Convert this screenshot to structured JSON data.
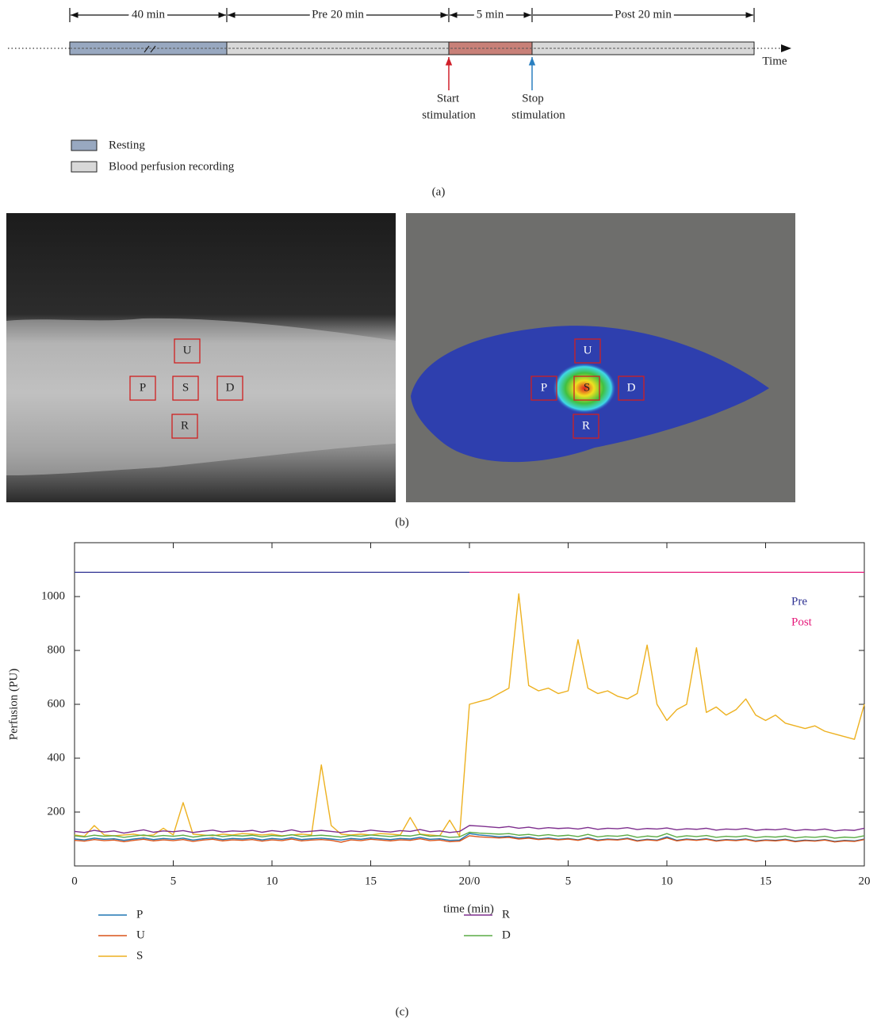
{
  "timeline": {
    "durations": [
      {
        "label": "40 min"
      },
      {
        "label": "Pre 20 min"
      },
      {
        "label": "5 min"
      },
      {
        "label": "Post 20 min"
      }
    ],
    "axis_label": "Time",
    "markers": [
      {
        "lines": [
          "Start",
          "stimulation"
        ]
      },
      {
        "lines": [
          "Stop",
          "stimulation"
        ]
      }
    ],
    "legend": [
      {
        "label": "Resting"
      },
      {
        "label": "Blood perfusion recording"
      }
    ],
    "caption": "(a)"
  },
  "images": {
    "left_rois": [
      "U",
      "P",
      "S",
      "D",
      "R"
    ],
    "right_rois": [
      "U",
      "P",
      "S",
      "D",
      "R"
    ],
    "caption": "(b)"
  },
  "chart_data": {
    "type": "line",
    "x_label": "time (min)",
    "y_label": "Perfusion (PU)",
    "caption": "(c)",
    "xlim": [
      0,
      40
    ],
    "xticks": [
      0,
      5,
      10,
      15,
      {
        "value": 20,
        "label": "20/0"
      },
      {
        "value": 25,
        "label": "5"
      },
      {
        "value": 30,
        "label": "10"
      },
      {
        "value": 35,
        "label": "15"
      },
      {
        "value": 40,
        "label": "20"
      }
    ],
    "ylim": [
      0,
      1200
    ],
    "yticks": [
      200,
      400,
      600,
      800,
      1000
    ],
    "periods": [
      {
        "name": "Pre",
        "color": "#2e3192",
        "start": 0,
        "end": 20,
        "level": 1090
      },
      {
        "name": "Post",
        "color": "#e6197a",
        "start": 20,
        "end": 40,
        "level": 1090
      }
    ],
    "x": [
      0,
      0.5,
      1,
      1.5,
      2,
      2.5,
      3,
      3.5,
      4,
      4.5,
      5,
      5.5,
      6,
      6.5,
      7,
      7.5,
      8,
      8.5,
      9,
      9.5,
      10,
      10.5,
      11,
      11.5,
      12,
      12.5,
      13,
      13.5,
      14,
      14.5,
      15,
      15.5,
      16,
      16.5,
      17,
      17.5,
      18,
      18.5,
      19,
      19.5,
      20,
      20.5,
      21,
      21.5,
      22,
      22.5,
      23,
      23.5,
      24,
      24.5,
      25,
      25.5,
      26,
      26.5,
      27,
      27.5,
      28,
      28.5,
      29,
      29.5,
      30,
      30.5,
      31,
      31.5,
      32,
      32.5,
      33,
      33.5,
      34,
      34.5,
      35,
      35.5,
      36,
      36.5,
      37,
      37.5,
      38,
      38.5,
      39,
      39.5,
      40
    ],
    "series": [
      {
        "name": "P",
        "color": "#1f77b4",
        "values": [
          100,
          97,
          103,
          99,
          101,
          95,
          100,
          104,
          98,
          102,
          99,
          103,
          96,
          101,
          104,
          98,
          102,
          100,
          103,
          97,
          102,
          99,
          105,
          98,
          101,
          103,
          100,
          96,
          102,
          99,
          104,
          101,
          98,
          102,
          100,
          106,
          99,
          101,
          95,
          96,
          120,
          115,
          112,
          108,
          110,
          104,
          107,
          100,
          104,
          99,
          102,
          97,
          105,
          96,
          100,
          98,
          103,
          94,
          99,
          96,
          108,
          95,
          100,
          97,
          101,
          94,
          98,
          96,
          100,
          93,
          97,
          95,
          99,
          92,
          96,
          94,
          98,
          91,
          95,
          93,
          100
        ]
      },
      {
        "name": "U",
        "color": "#d95319",
        "values": [
          95,
          92,
          98,
          94,
          96,
          90,
          95,
          99,
          93,
          97,
          94,
          98,
          91,
          96,
          99,
          93,
          97,
          95,
          98,
          92,
          97,
          94,
          100,
          93,
          96,
          98,
          95,
          88,
          97,
          94,
          99,
          96,
          93,
          97,
          95,
          101,
          94,
          96,
          90,
          92,
          112,
          108,
          106,
          104,
          106,
          100,
          103,
          98,
          101,
          97,
          100,
          95,
          102,
          94,
          98,
          96,
          101,
          92,
          97,
          94,
          104,
          93,
          98,
          95,
          99,
          92,
          96,
          94,
          98,
          91,
          95,
          93,
          97,
          90,
          94,
          92,
          96,
          89,
          93,
          91,
          98
        ]
      },
      {
        "name": "S",
        "color": "#edb120",
        "values": [
          115,
          110,
          150,
          115,
          112,
          115,
          118,
          112,
          115,
          140,
          115,
          235,
          118,
          115,
          112,
          118,
          115,
          120,
          118,
          115,
          118,
          112,
          115,
          118,
          115,
          375,
          150,
          118,
          115,
          118,
          115,
          120,
          118,
          115,
          180,
          118,
          115,
          112,
          170,
          110,
          600,
          610,
          620,
          640,
          660,
          1010,
          670,
          650,
          660,
          640,
          650,
          840,
          660,
          640,
          650,
          630,
          620,
          640,
          820,
          600,
          540,
          580,
          600,
          810,
          570,
          590,
          560,
          580,
          620,
          560,
          540,
          560,
          530,
          520,
          510,
          520,
          500,
          490,
          480,
          470,
          600
        ]
      },
      {
        "name": "R",
        "color": "#7e2f8e",
        "values": [
          128,
          124,
          132,
          126,
          130,
          122,
          128,
          134,
          125,
          130,
          127,
          131,
          124,
          129,
          133,
          126,
          130,
          128,
          132,
          125,
          131,
          127,
          134,
          126,
          129,
          132,
          128,
          124,
          130,
          127,
          133,
          129,
          126,
          131,
          128,
          135,
          127,
          130,
          124,
          128,
          150,
          148,
          145,
          142,
          146,
          140,
          144,
          138,
          142,
          139,
          141,
          137,
          143,
          136,
          140,
          138,
          142,
          135,
          139,
          137,
          141,
          134,
          138,
          136,
          140,
          133,
          137,
          135,
          139,
          132,
          136,
          134,
          138,
          131,
          135,
          133,
          137,
          130,
          134,
          132,
          140
        ]
      },
      {
        "name": "D",
        "color": "#5aab46",
        "values": [
          112,
          108,
          114,
          110,
          112,
          106,
          111,
          115,
          109,
          113,
          110,
          114,
          107,
          112,
          115,
          109,
          113,
          111,
          114,
          108,
          113,
          110,
          116,
          109,
          112,
          114,
          111,
          107,
          113,
          110,
          115,
          112,
          109,
          113,
          111,
          117,
          110,
          112,
          106,
          108,
          125,
          122,
          120,
          118,
          120,
          114,
          117,
          112,
          116,
          111,
          114,
          109,
          117,
          108,
          112,
          110,
          115,
          106,
          111,
          108,
          120,
          107,
          112,
          109,
          113,
          106,
          110,
          108,
          112,
          105,
          109,
          107,
          111,
          104,
          108,
          106,
          110,
          103,
          107,
          105,
          112
        ]
      }
    ]
  }
}
